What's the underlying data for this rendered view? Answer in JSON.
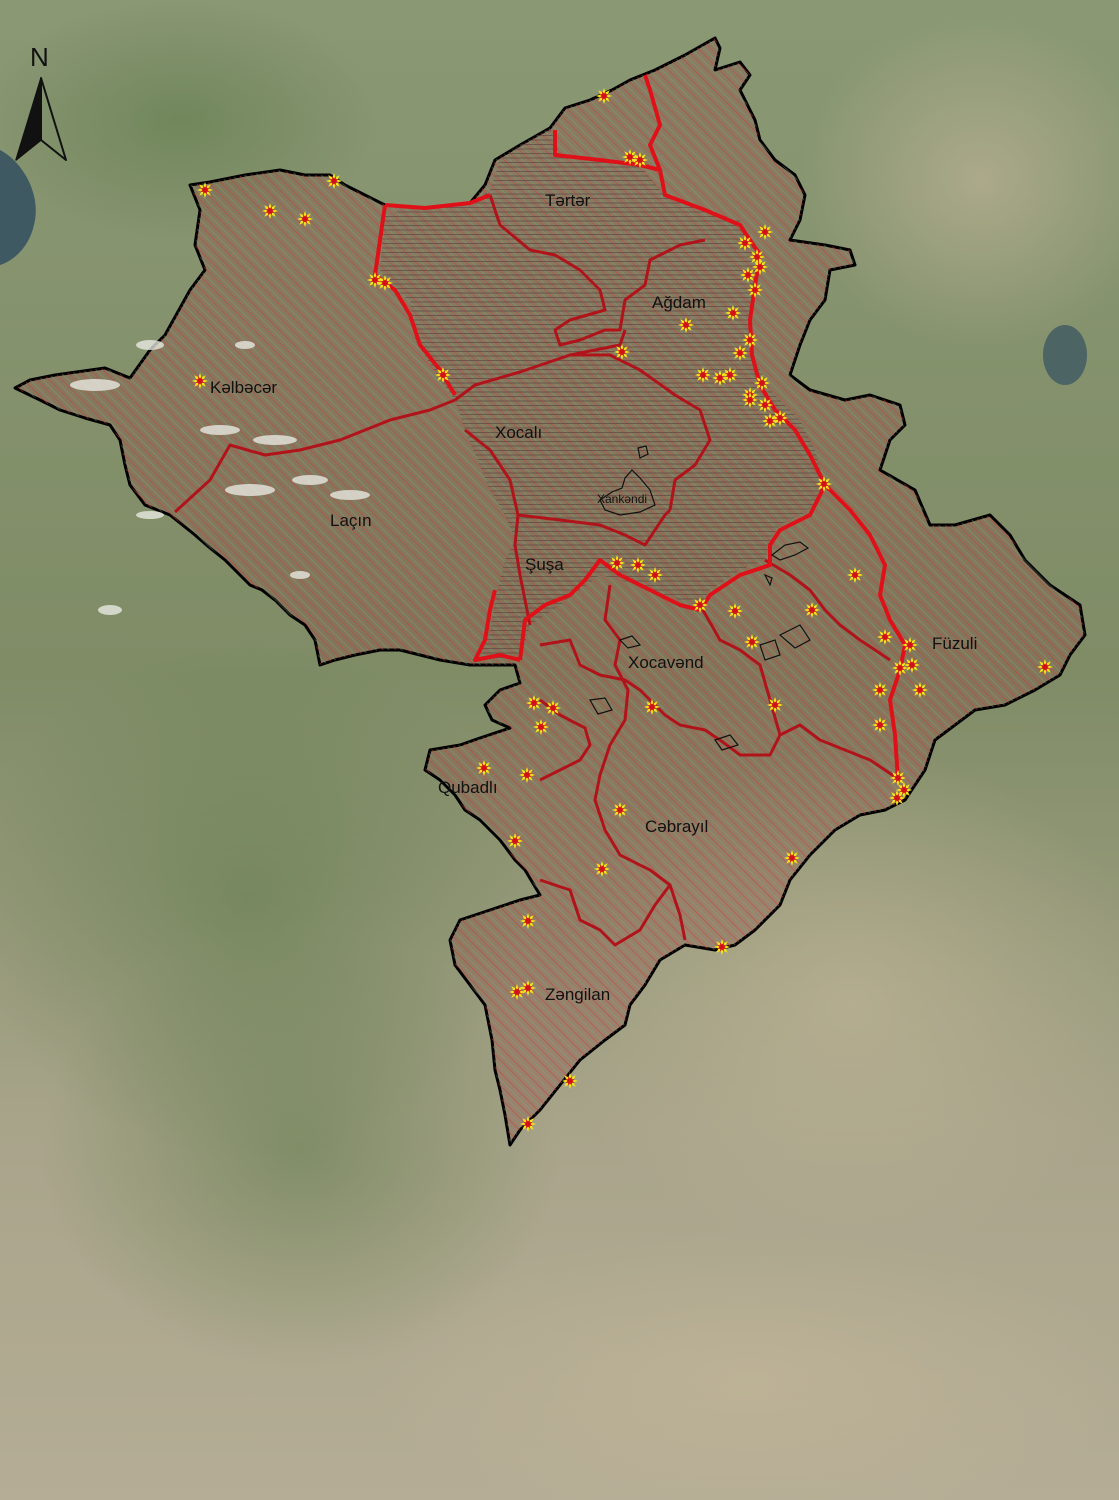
{
  "north_arrow": {
    "letter": "N",
    "icon": "north-arrow-icon"
  },
  "districts": [
    {
      "id": "kelbecer",
      "label": "Kəlbəcər"
    },
    {
      "id": "terter",
      "label": "Tərtər"
    },
    {
      "id": "agdam",
      "label": "Ağdam"
    },
    {
      "id": "xocali",
      "label": "Xocalı"
    },
    {
      "id": "lacin",
      "label": "Laçın"
    },
    {
      "id": "susa",
      "label": "Şuşa"
    },
    {
      "id": "xocavend",
      "label": "Xocavənd"
    },
    {
      "id": "fuzuli",
      "label": "Füzuli"
    },
    {
      "id": "qubadli",
      "label": "Qubadlı"
    },
    {
      "id": "cebrayil",
      "label": "Cəbrayıl"
    },
    {
      "id": "zengilan",
      "label": "Zəngilan"
    }
  ],
  "city": {
    "label": "Xankəndi"
  },
  "colors": {
    "outer_border": "#000000",
    "district_border": "#b0141a",
    "front_line": "#e01018",
    "hatch": "#d23a3a",
    "marker_outer": "#f5e21a",
    "marker_inner": "#d0101a"
  },
  "markers": {
    "icon": "explosion-marker-icon"
  }
}
